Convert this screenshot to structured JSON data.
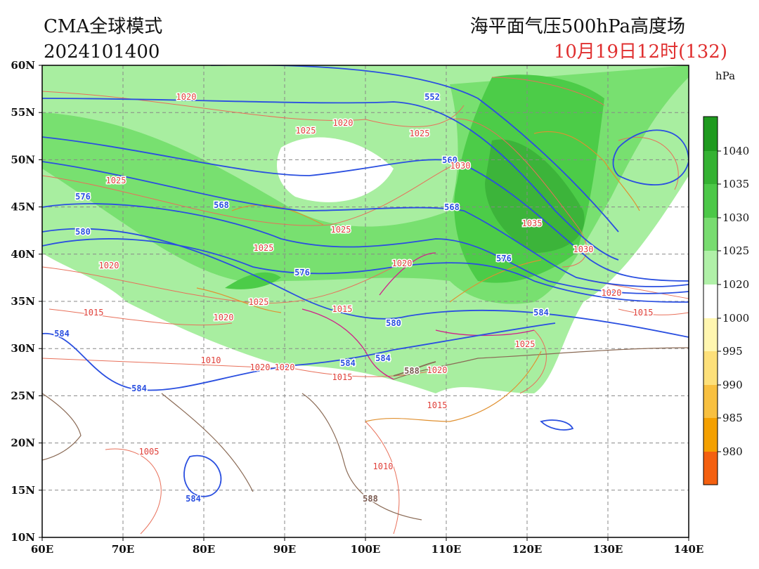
{
  "header": {
    "model": "CMA全球模式",
    "init": "2024101400",
    "title": "海平面气压500hPa高度场",
    "valid": "10月19日12时(132)"
  },
  "map": {
    "lon_ticks": [
      "60E",
      "70E",
      "80E",
      "90E",
      "100E",
      "110E",
      "120E",
      "130E",
      "140E"
    ],
    "lat_ticks": [
      "10N",
      "15N",
      "20N",
      "25N",
      "30N",
      "35N",
      "40N",
      "45N",
      "50N",
      "55N",
      "60N"
    ],
    "colorbar": {
      "unit": "hPa",
      "labels": [
        "1040",
        "1035",
        "1030",
        "1025",
        "1020",
        "1000",
        "995",
        "990",
        "985",
        "980"
      ]
    },
    "height_labels": [
      "552",
      "560",
      "568",
      "568",
      "576",
      "576",
      "576",
      "580",
      "580",
      "584",
      "584",
      "584",
      "584",
      "584",
      "584",
      "588",
      "588"
    ],
    "slp_labels": [
      "1020",
      "1025",
      "1020",
      "1025",
      "1030",
      "1025",
      "1025",
      "1035",
      "1025",
      "1030",
      "1020",
      "1020",
      "1015",
      "1025",
      "1015",
      "1020",
      "1015",
      "1020",
      "1025",
      "1010",
      "1020",
      "1020",
      "1020",
      "1015",
      "1015",
      "1005",
      "1010"
    ]
  }
}
